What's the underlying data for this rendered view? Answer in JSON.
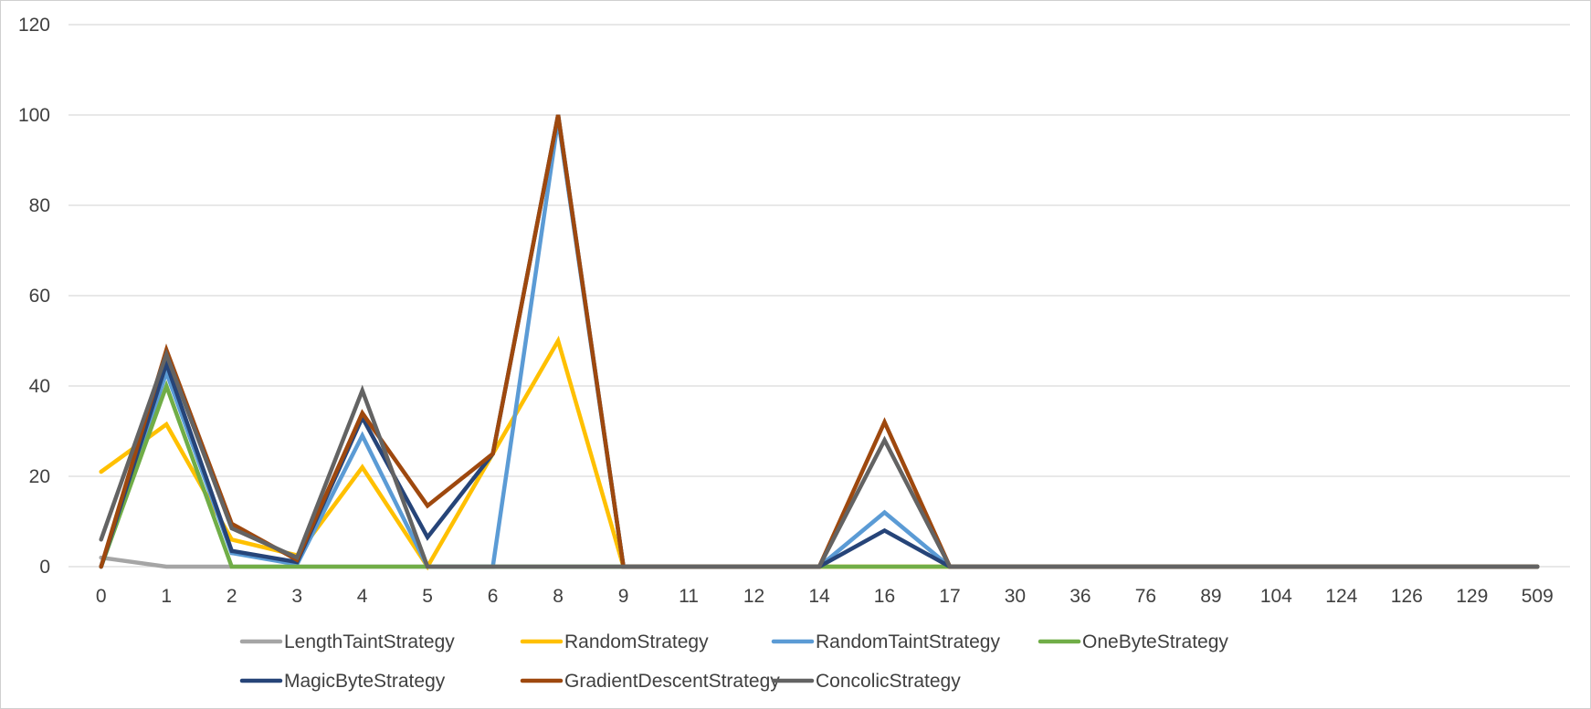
{
  "chart_data": {
    "type": "line",
    "title": "",
    "xlabel": "",
    "ylabel": "",
    "ylim": [
      0,
      120
    ],
    "yticks": [
      0,
      20,
      40,
      60,
      80,
      100,
      120
    ],
    "grid": true,
    "legend_position": "bottom",
    "categories": [
      "0",
      "1",
      "2",
      "3",
      "4",
      "5",
      "6",
      "8",
      "9",
      "11",
      "12",
      "14",
      "16",
      "17",
      "30",
      "36",
      "76",
      "89",
      "104",
      "124",
      "126",
      "129",
      "509"
    ],
    "series": [
      {
        "name": "LengthTaintStrategy",
        "color": "#a5a5a5",
        "values": [
          2,
          0,
          0,
          0,
          0,
          0,
          0,
          0,
          0,
          0,
          0,
          0,
          0,
          0,
          0,
          0,
          0,
          0,
          0,
          0,
          0,
          0,
          0
        ]
      },
      {
        "name": "RandomStrategy",
        "color": "#ffc000",
        "values": [
          21,
          31.5,
          6,
          2.5,
          22,
          0,
          25,
          50,
          0,
          0,
          0,
          0,
          0,
          0,
          0,
          0,
          0,
          0,
          0,
          0,
          0,
          0,
          0
        ]
      },
      {
        "name": "RandomTaintStrategy",
        "color": "#5b9bd5",
        "values": [
          0,
          43,
          3,
          0.5,
          29,
          0,
          0,
          99,
          0,
          0,
          0,
          0,
          12,
          0,
          0,
          0,
          0,
          0,
          0,
          0,
          0,
          0,
          0
        ]
      },
      {
        "name": "OneByteStrategy",
        "color": "#70ad47",
        "values": [
          0,
          40,
          0,
          0,
          0,
          0,
          0,
          0,
          0,
          0,
          0,
          0,
          0,
          0,
          0,
          0,
          0,
          0,
          0,
          0,
          0,
          0,
          0
        ]
      },
      {
        "name": "MagicByteStrategy",
        "color": "#264478",
        "values": [
          0,
          45,
          3.5,
          1,
          33,
          6.5,
          25,
          100,
          0,
          0,
          0,
          0,
          8,
          0,
          0,
          0,
          0,
          0,
          0,
          0,
          0,
          0,
          0
        ]
      },
      {
        "name": "GradientDescentStrategy",
        "color": "#9e480e",
        "values": [
          0,
          48,
          9.5,
          1.5,
          34,
          13.5,
          25,
          100,
          0,
          0,
          0,
          0,
          32,
          0,
          0,
          0,
          0,
          0,
          0,
          0,
          0,
          0,
          0
        ]
      },
      {
        "name": "ConcolicStrategy",
        "color": "#636363",
        "values": [
          6,
          47,
          8.5,
          2,
          39,
          0,
          0,
          0,
          0,
          0,
          0,
          0,
          28,
          0,
          0,
          0,
          0,
          0,
          0,
          0,
          0,
          0,
          0
        ]
      }
    ]
  }
}
